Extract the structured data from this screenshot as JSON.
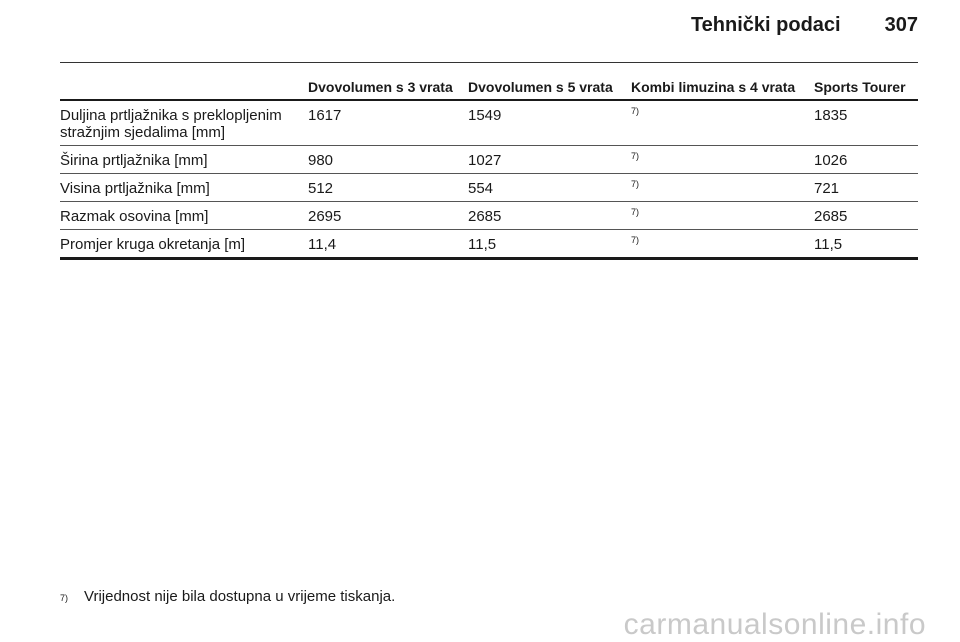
{
  "header": {
    "title": "Tehnički podaci",
    "page_number": "307"
  },
  "table": {
    "columns": [
      "",
      "Dvovolumen s 3 vrata",
      "Dvovolumen s 5 vrata",
      "Kombi limuzina s 4 vrata",
      "Sports Tourer"
    ],
    "rows": [
      {
        "label": "Duljina prtljažnika s preklopljenim stražnjim sjedalima [mm]",
        "v1": "1617",
        "v2": "1549",
        "v3": "7)",
        "v4": "1835"
      },
      {
        "label": "Širina prtljažnika [mm]",
        "v1": "980",
        "v2": "1027",
        "v3": "7)",
        "v4": "1026"
      },
      {
        "label": "Visina prtljažnika [mm]",
        "v1": "512",
        "v2": "554",
        "v3": "7)",
        "v4": "721"
      },
      {
        "label": "Razmak osovina [mm]",
        "v1": "2695",
        "v2": "2685",
        "v3": "7)",
        "v4": "2685"
      },
      {
        "label": "Promjer kruga okretanja [m]",
        "v1": "11,4",
        "v2": "11,5",
        "v3": "7)",
        "v4": "11,5"
      }
    ]
  },
  "footnote": {
    "marker": "7)",
    "text": "Vrijednost nije bila dostupna u vrijeme tiskanja."
  },
  "watermark": "carmanualsonline.info"
}
